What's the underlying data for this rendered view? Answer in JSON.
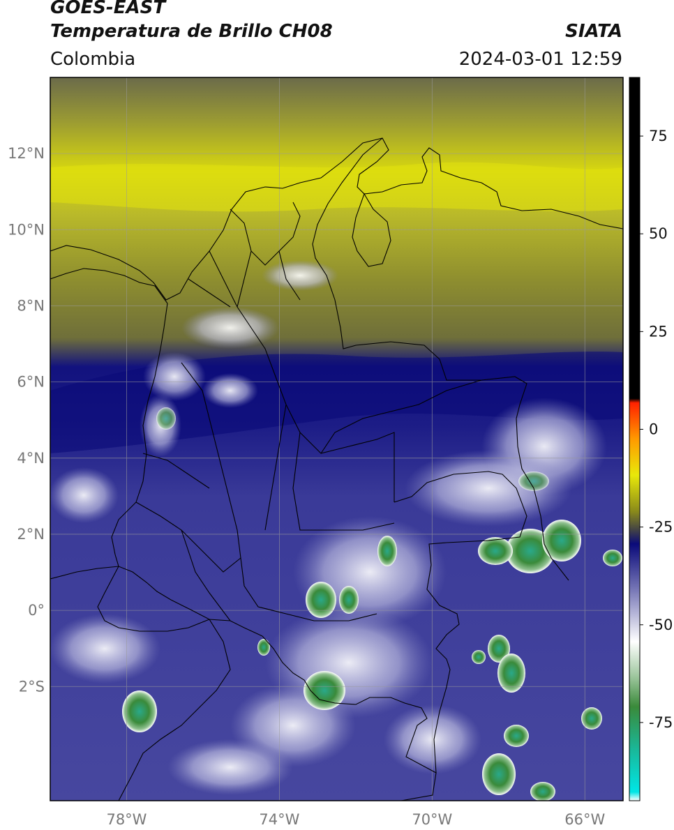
{
  "header": {
    "satellite": "GOES-EAST",
    "product": "Temperatura de Brillo CH08",
    "region": "Colombia",
    "source": "SIATA",
    "datetime": "2024-03-01 12:59"
  },
  "map": {
    "lon_range": [
      -80,
      -65
    ],
    "lat_range": [
      -5,
      14
    ],
    "lat_ticks": [
      {
        "label": "12°N",
        "value": 12
      },
      {
        "label": "10°N",
        "value": 10
      },
      {
        "label": "8°N",
        "value": 8
      },
      {
        "label": "6°N",
        "value": 6
      },
      {
        "label": "4°N",
        "value": 4
      },
      {
        "label": "2°N",
        "value": 2
      },
      {
        "label": "0°",
        "value": 0
      },
      {
        "label": "2°S",
        "value": -2
      }
    ],
    "lon_ticks": [
      {
        "label": "78°W",
        "value": -78
      },
      {
        "label": "74°W",
        "value": -74
      },
      {
        "label": "70°W",
        "value": -70
      },
      {
        "label": "66°W",
        "value": -66
      }
    ]
  },
  "colorbar": {
    "range": [
      -95,
      90
    ],
    "ticks": [
      {
        "label": "75",
        "value": 75
      },
      {
        "label": "50",
        "value": 50
      },
      {
        "label": "25",
        "value": 25
      },
      {
        "label": "0",
        "value": 0
      },
      {
        "label": "-25",
        "value": -25
      },
      {
        "label": "-50",
        "value": -50
      },
      {
        "label": "-75",
        "value": -75
      }
    ],
    "colors": {
      "warm_black": "#000000",
      "red": "#ff2200",
      "orange": "#ff9a00",
      "yellow": "#e8e80a",
      "olive": "#8a8a1a",
      "grey": "#555555",
      "navy": "#0a0a7a",
      "blue": "#3a3a9a",
      "white": "#ffffff",
      "green": "#3a8a3a",
      "teal": "#1abf99",
      "cyan": "#00e5e5"
    }
  }
}
